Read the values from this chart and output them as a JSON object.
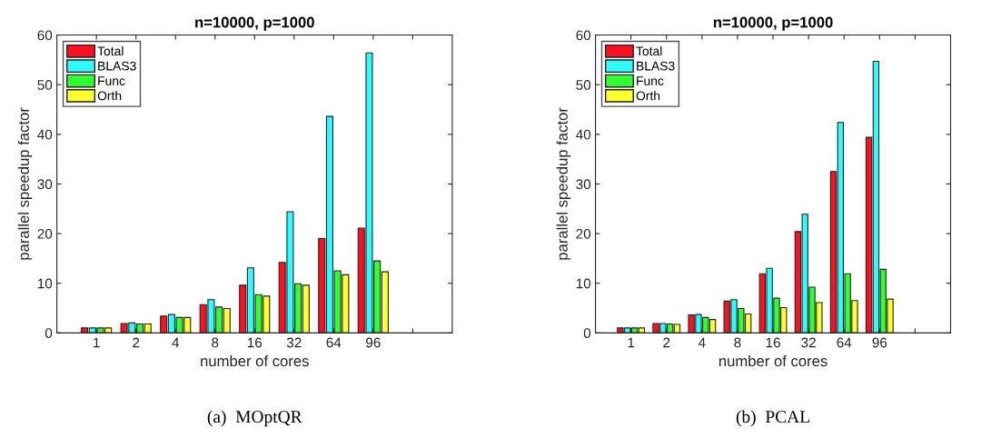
{
  "chart_data": [
    {
      "type": "bar",
      "title": "n=10000, p=1000",
      "xlabel": "number of cores",
      "ylabel": "parallel speedup factor",
      "annotations": [
        "(a)  MOptQR"
      ],
      "categories": [
        "1",
        "2",
        "4",
        "8",
        "16",
        "32",
        "64",
        "96",
        null
      ],
      "series": [
        {
          "name": "Total",
          "color": "#ff1020",
          "values": [
            1.0,
            1.9,
            3.4,
            5.7,
            9.6,
            14.2,
            19.0,
            21.1,
            null
          ]
        },
        {
          "name": "BLAS3",
          "color": "#30fcff",
          "values": [
            1.0,
            2.0,
            3.7,
            6.7,
            13.1,
            24.4,
            43.6,
            56.4,
            null
          ]
        },
        {
          "name": "Func",
          "color": "#30ff30",
          "values": [
            1.0,
            1.8,
            3.1,
            5.2,
            7.7,
            9.9,
            12.5,
            14.5,
            null
          ]
        },
        {
          "name": "Orth",
          "color": "#ffff30",
          "values": [
            1.0,
            1.8,
            3.1,
            4.9,
            7.4,
            9.6,
            11.7,
            12.3,
            null
          ]
        }
      ],
      "ylim": [
        0,
        60
      ],
      "yticks": [
        0,
        10,
        20,
        30,
        40,
        50,
        60
      ],
      "grid": false,
      "legend": "top left"
    },
    {
      "type": "bar",
      "title": "n=10000, p=1000",
      "xlabel": "number of cores",
      "ylabel": "parallel speedup factor",
      "annotations": [
        "(b)  PCAL"
      ],
      "categories": [
        "1",
        "2",
        "4",
        "8",
        "16",
        "32",
        "64",
        "96",
        null
      ],
      "series": [
        {
          "name": "Total",
          "color": "#ff1020",
          "values": [
            1.0,
            1.9,
            3.6,
            6.4,
            11.9,
            20.4,
            32.5,
            39.4,
            null
          ]
        },
        {
          "name": "BLAS3",
          "color": "#30fcff",
          "values": [
            1.0,
            1.9,
            3.7,
            6.7,
            13.0,
            23.9,
            42.4,
            54.7,
            null
          ]
        },
        {
          "name": "Func",
          "color": "#30ff30",
          "values": [
            1.0,
            1.8,
            3.1,
            4.9,
            7.0,
            9.2,
            11.9,
            12.8,
            null
          ]
        },
        {
          "name": "Orth",
          "color": "#ffff30",
          "values": [
            1.0,
            1.7,
            2.7,
            3.8,
            5.1,
            6.1,
            6.5,
            6.8,
            null
          ]
        }
      ],
      "ylim": [
        0,
        60
      ],
      "yticks": [
        0,
        10,
        20,
        30,
        40,
        50,
        60
      ],
      "grid": false,
      "legend": "top left"
    }
  ]
}
